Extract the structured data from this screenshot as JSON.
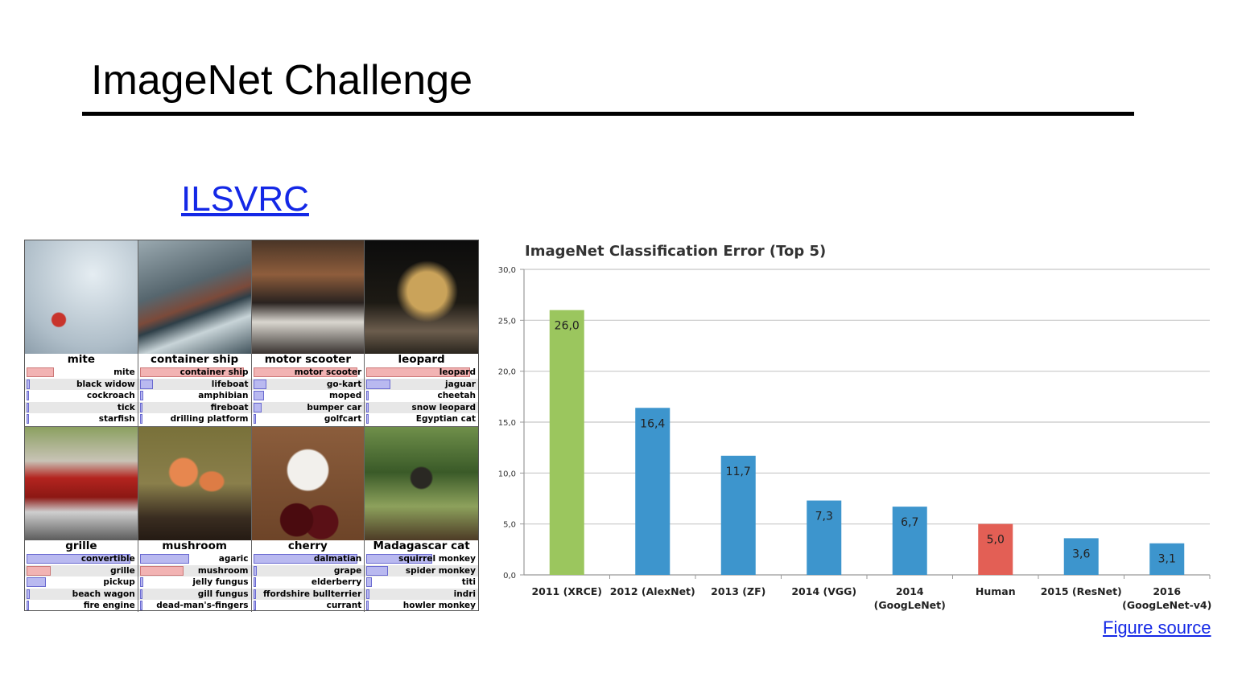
{
  "slide": {
    "title": "ImageNet Challenge",
    "link_label": "ILSVRC",
    "source_label": "Figure source"
  },
  "examples": [
    {
      "truth": "mite",
      "photo": "mite",
      "preds": [
        {
          "label": "mite",
          "score": 0.25,
          "correct": true
        },
        {
          "label": "black widow",
          "score": 0.03,
          "correct": false
        },
        {
          "label": "cockroach",
          "score": 0.02,
          "correct": false
        },
        {
          "label": "tick",
          "score": 0.015,
          "correct": false
        },
        {
          "label": "starfish",
          "score": 0.01,
          "correct": false
        }
      ]
    },
    {
      "truth": "container ship",
      "photo": "container-ship",
      "preds": [
        {
          "label": "container ship",
          "score": 0.95,
          "correct": true
        },
        {
          "label": "lifeboat",
          "score": 0.12,
          "correct": false
        },
        {
          "label": "amphibian",
          "score": 0.03,
          "correct": false
        },
        {
          "label": "fireboat",
          "score": 0.02,
          "correct": false
        },
        {
          "label": "drilling platform",
          "score": 0.01,
          "correct": false
        }
      ]
    },
    {
      "truth": "motor scooter",
      "photo": "motor-scooter",
      "preds": [
        {
          "label": "motor scooter",
          "score": 0.95,
          "correct": true
        },
        {
          "label": "go-kart",
          "score": 0.12,
          "correct": false
        },
        {
          "label": "moped",
          "score": 0.1,
          "correct": false
        },
        {
          "label": "bumper car",
          "score": 0.08,
          "correct": false
        },
        {
          "label": "golfcart",
          "score": 0.02,
          "correct": false
        }
      ]
    },
    {
      "truth": "leopard",
      "photo": "leopard",
      "preds": [
        {
          "label": "leopard",
          "score": 0.95,
          "correct": true
        },
        {
          "label": "jaguar",
          "score": 0.22,
          "correct": false
        },
        {
          "label": "cheetah",
          "score": 0.02,
          "correct": false
        },
        {
          "label": "snow leopard",
          "score": 0.02,
          "correct": false
        },
        {
          "label": "Egyptian cat",
          "score": 0.01,
          "correct": false
        }
      ]
    },
    {
      "truth": "grille",
      "photo": "grille",
      "preds": [
        {
          "label": "convertible",
          "score": 0.95,
          "correct": false
        },
        {
          "label": "grille",
          "score": 0.22,
          "correct": true
        },
        {
          "label": "pickup",
          "score": 0.18,
          "correct": false
        },
        {
          "label": "beach wagon",
          "score": 0.03,
          "correct": false
        },
        {
          "label": "fire engine",
          "score": 0.02,
          "correct": false
        }
      ]
    },
    {
      "truth": "mushroom",
      "photo": "mushroom",
      "preds": [
        {
          "label": "agaric",
          "score": 0.45,
          "correct": false
        },
        {
          "label": "mushroom",
          "score": 0.4,
          "correct": true
        },
        {
          "label": "jelly fungus",
          "score": 0.03,
          "correct": false
        },
        {
          "label": "gill fungus",
          "score": 0.02,
          "correct": false
        },
        {
          "label": "dead-man's-fingers",
          "score": 0.01,
          "correct": false
        }
      ]
    },
    {
      "truth": "cherry",
      "photo": "cherry",
      "preds": [
        {
          "label": "dalmatian",
          "score": 0.95,
          "correct": false
        },
        {
          "label": "grape",
          "score": 0.03,
          "correct": false
        },
        {
          "label": "elderberry",
          "score": 0.02,
          "correct": false
        },
        {
          "label": "ffordshire bullterrier",
          "score": 0.015,
          "correct": false
        },
        {
          "label": "currant",
          "score": 0.01,
          "correct": false
        }
      ]
    },
    {
      "truth": "Madagascar cat",
      "photo": "madagascar-cat",
      "preds": [
        {
          "label": "squirrel monkey",
          "score": 0.6,
          "correct": false
        },
        {
          "label": "spider monkey",
          "score": 0.2,
          "correct": false
        },
        {
          "label": "titi",
          "score": 0.05,
          "correct": false
        },
        {
          "label": "indri",
          "score": 0.03,
          "correct": false
        },
        {
          "label": "howler monkey",
          "score": 0.02,
          "correct": false
        }
      ]
    }
  ],
  "chart_data": {
    "type": "bar",
    "title": "ImageNet Classification Error (Top 5)",
    "xlabel": "",
    "ylabel": "",
    "ylim": [
      0,
      30
    ],
    "yticks": [
      "0,0",
      "5,0",
      "10,0",
      "15,0",
      "20,0",
      "25,0",
      "30,0"
    ],
    "grid": true,
    "categories": [
      [
        "2011 (XRCE)"
      ],
      [
        "2012 (AlexNet)"
      ],
      [
        "2013 (ZF)"
      ],
      [
        "2014 (VGG)"
      ],
      [
        "2014",
        "(GoogLeNet)"
      ],
      [
        "Human"
      ],
      [
        "2015 (ResNet)"
      ],
      [
        "2016",
        "(GoogLeNet-v4)"
      ]
    ],
    "values": [
      26.0,
      16.4,
      11.7,
      7.3,
      6.7,
      5.0,
      3.6,
      3.1
    ],
    "data_labels": [
      "26,0",
      "16,4",
      "11,7",
      "7,3",
      "6,7",
      "5,0",
      "3,6",
      "3,1"
    ],
    "colors": [
      "#9bc65e",
      "#3d95cd",
      "#3d95cd",
      "#3d95cd",
      "#3d95cd",
      "#e35f55",
      "#3d95cd",
      "#3d95cd"
    ]
  }
}
